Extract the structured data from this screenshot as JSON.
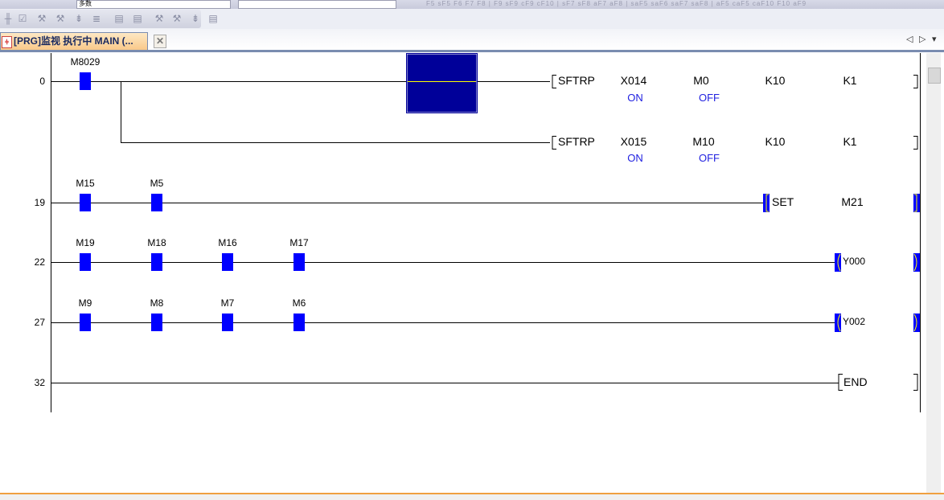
{
  "toolbar": {
    "combo1_value": "多数",
    "fkeys": "F5 sF5 F6 F7 F8 | F9 sF9 cF9 cF10 | sF7 sF8 aF7 aF8 | saF5 saF6 saF7 saF8 | aF5 caF5 caF10 F10 aF9"
  },
  "tab": {
    "label": "[PRG]监视 执行中 MAIN (...",
    "close": "✕"
  },
  "nav": {
    "prev": "◁",
    "next": "▷",
    "menu": "▾"
  },
  "ladder": {
    "rung0": {
      "step": "0",
      "contact": "M8029",
      "inst1": {
        "op": "SFTRP",
        "args": [
          "X014",
          "M0",
          "K10",
          "K1"
        ],
        "states": [
          "ON",
          "OFF"
        ]
      },
      "inst2": {
        "op": "SFTRP",
        "args": [
          "X015",
          "M10",
          "K10",
          "K1"
        ],
        "states": [
          "ON",
          "OFF"
        ]
      }
    },
    "rung19": {
      "step": "19",
      "contacts": [
        "M15",
        "M5"
      ],
      "op": "SET",
      "arg": "M21"
    },
    "rung22": {
      "step": "22",
      "contacts": [
        "M19",
        "M18",
        "M16",
        "M17"
      ],
      "coil": "Y000"
    },
    "rung27": {
      "step": "27",
      "contacts": [
        "M9",
        "M8",
        "M7",
        "M6"
      ],
      "coil": "Y002"
    },
    "rung32": {
      "step": "32",
      "op": "END"
    }
  },
  "colors": {
    "contact": "#0000ff",
    "cursor": "#000099",
    "state": "#2020e0",
    "wire": "#000000"
  }
}
